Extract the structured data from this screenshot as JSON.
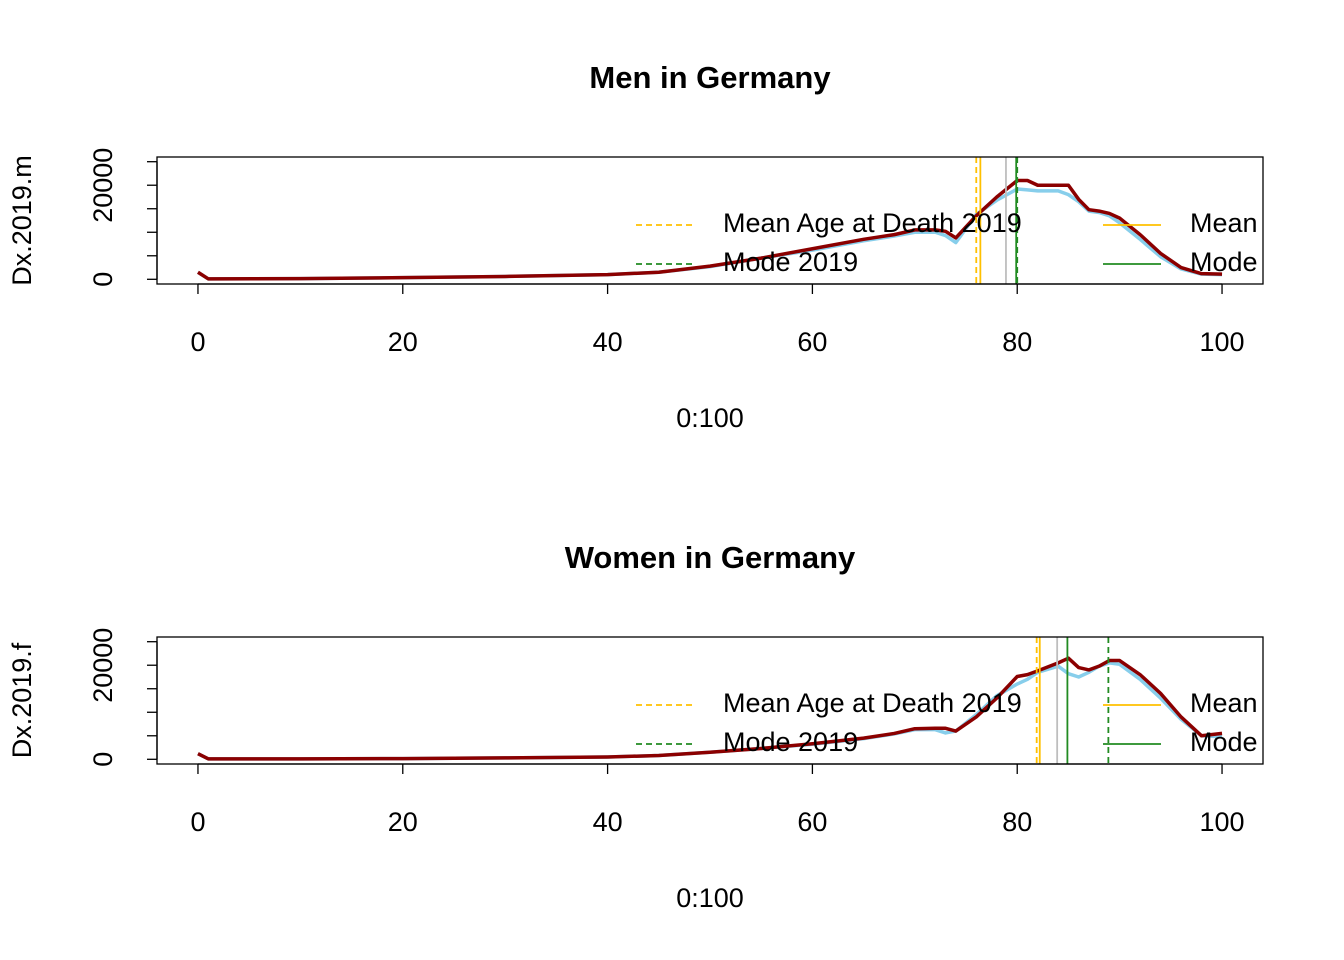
{
  "chart_data": [
    {
      "type": "line",
      "title": "Men in Germany",
      "x_label": "0:100",
      "y_label": "Dx.2019.m",
      "x": [
        0,
        1,
        10,
        20,
        30,
        40,
        45,
        50,
        55,
        60,
        65,
        68,
        70,
        72,
        73,
        74,
        76,
        78,
        80,
        81,
        82,
        84,
        85,
        86,
        87,
        88,
        89,
        90,
        92,
        94,
        96,
        98,
        100
      ],
      "series": [
        {
          "color": "#87ceeb",
          "values": [
            1500,
            100,
            150,
            350,
            600,
            1000,
            1500,
            2700,
            4500,
            6200,
            8200,
            9200,
            10000,
            10000,
            9300,
            7800,
            13800,
            16800,
            19200,
            19000,
            18800,
            18800,
            18000,
            16500,
            14500,
            14200,
            13500,
            12000,
            8500,
            4800,
            2200,
            1100,
            1000
          ]
        },
        {
          "color": "#8b0000",
          "values": [
            1500,
            100,
            150,
            350,
            600,
            1000,
            1500,
            2800,
            4500,
            6500,
            8500,
            9500,
            10500,
            10500,
            10200,
            8800,
            13500,
            17500,
            21000,
            21000,
            20000,
            20000,
            20000,
            17000,
            14800,
            14500,
            14000,
            13000,
            9500,
            5500,
            2500,
            1200,
            1100
          ]
        }
      ],
      "vlines": [
        {
          "x": 76.0,
          "color": "#ffc000",
          "dashed": true
        },
        {
          "x": 76.4,
          "color": "#ffc000",
          "dashed": false
        },
        {
          "x": 78.9,
          "color": "#bebebe",
          "dashed": false
        },
        {
          "x": 79.9,
          "color": "#228b22",
          "dashed": false
        },
        {
          "x": 80.0,
          "color": "#228b22",
          "dashed": true
        }
      ],
      "legend": [
        {
          "label": "Mean Age at Death 2019",
          "color": "#ffc000",
          "dashed": true
        },
        {
          "label": "Mode 2019",
          "color": "#228b22",
          "dashed": true
        },
        {
          "label": "Mean",
          "color": "#ffc000",
          "dashed": false
        },
        {
          "label": "Mode",
          "color": "#228b22",
          "dashed": false
        }
      ],
      "xlim": [
        -4,
        104
      ],
      "xticks": [
        0,
        20,
        40,
        60,
        80,
        100
      ],
      "ylim": [
        -1000,
        26000
      ],
      "yticks": [
        0,
        {
          "value": 5000,
          "label": null
        },
        {
          "value": 10000,
          "label": null
        },
        {
          "value": 15000,
          "label": null
        },
        20000,
        {
          "value": 25000,
          "label": null
        }
      ]
    },
    {
      "type": "line",
      "title": "Women in Germany",
      "x_label": "0:100",
      "y_label": "Dx.2019.f",
      "x": [
        0,
        1,
        10,
        20,
        30,
        40,
        45,
        50,
        55,
        60,
        65,
        68,
        70,
        72,
        73,
        74,
        76,
        78,
        80,
        81,
        82,
        84,
        85,
        86,
        87,
        88,
        89,
        90,
        92,
        94,
        96,
        98,
        100
      ],
      "series": [
        {
          "color": "#87ceeb",
          "values": [
            1200,
            100,
            100,
            150,
            300,
            500,
            800,
            1500,
            2300,
            3200,
            4400,
            5400,
            6300,
            6300,
            5600,
            6000,
            9500,
            13500,
            16000,
            17000,
            18500,
            19800,
            18200,
            17500,
            18500,
            19800,
            20500,
            20200,
            17000,
            13000,
            8500,
            5000,
            4800
          ]
        },
        {
          "color": "#8b0000",
          "values": [
            1200,
            100,
            100,
            150,
            300,
            500,
            800,
            1500,
            2300,
            3300,
            4500,
            5500,
            6500,
            6600,
            6600,
            6000,
            9000,
            13000,
            17600,
            18000,
            18800,
            20500,
            21500,
            19500,
            19000,
            19800,
            21000,
            21000,
            18000,
            14000,
            9000,
            5000,
            5500
          ]
        }
      ],
      "vlines": [
        {
          "x": 81.9,
          "color": "#ffc000",
          "dashed": true
        },
        {
          "x": 82.2,
          "color": "#ffc000",
          "dashed": false
        },
        {
          "x": 83.9,
          "color": "#bebebe",
          "dashed": false
        },
        {
          "x": 84.9,
          "color": "#228b22",
          "dashed": false
        },
        {
          "x": 88.9,
          "color": "#228b22",
          "dashed": true
        }
      ],
      "legend": [
        {
          "label": "Mean Age at Death 2019",
          "color": "#ffc000",
          "dashed": true
        },
        {
          "label": "Mode 2019",
          "color": "#228b22",
          "dashed": true
        },
        {
          "label": "Mean",
          "color": "#ffc000",
          "dashed": false
        },
        {
          "label": "Mode",
          "color": "#228b22",
          "dashed": false
        }
      ],
      "xlim": [
        -4,
        104
      ],
      "xticks": [
        0,
        20,
        40,
        60,
        80,
        100
      ],
      "ylim": [
        -1000,
        26000
      ],
      "yticks": [
        0,
        {
          "value": 5000,
          "label": null
        },
        {
          "value": 10000,
          "label": null
        },
        {
          "value": 15000,
          "label": null
        },
        20000,
        {
          "value": 25000,
          "label": null
        }
      ]
    }
  ]
}
